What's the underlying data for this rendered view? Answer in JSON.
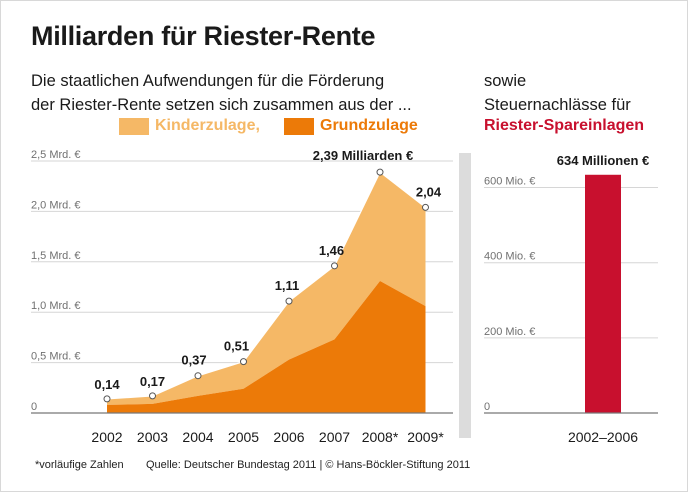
{
  "title": "Milliarden für Riester-Rente",
  "subtitle_left": [
    "Die staatlichen Aufwendungen für die Förderung",
    "der Riester-Rente setzen sich zusammen aus der ..."
  ],
  "subtitle_right": [
    "sowie",
    "Steuernachlässe für"
  ],
  "right_highlight": "Riester-Spareinlagen",
  "legend": {
    "kinderzulage": "Kinderzulage,",
    "grundzulage": "Grundzulage"
  },
  "colors": {
    "kinderzulage": "#f5b866",
    "grundzulage": "#ec7a08",
    "spareinlagen": "#c8102e",
    "grid": "#d6d6d6",
    "tick_label": "#707070"
  },
  "footnote": "*vorläufige Zahlen",
  "source": "Quelle: Deutscher Bundestag 2011 | © Hans-Böckler-Stiftung 2011",
  "chart_data": [
    {
      "type": "area",
      "categories": [
        "2002",
        "2003",
        "2004",
        "2005",
        "2006",
        "2007",
        "2008*",
        "2009*"
      ],
      "y_ticks": [
        "0",
        "0,5 Mrd. €",
        "1,0 Mrd. €",
        "1,5 Mrd. €",
        "2,0 Mrd. €",
        "2,5 Mrd. €"
      ],
      "ylim": [
        0,
        2.5
      ],
      "grid": true,
      "stacked": true,
      "series": [
        {
          "name": "Grundzulage",
          "values": [
            0.08,
            0.09,
            0.17,
            0.24,
            0.53,
            0.73,
            1.31,
            1.06
          ]
        },
        {
          "name": "Kinderzulage",
          "values": [
            0.06,
            0.08,
            0.2,
            0.27,
            0.58,
            0.73,
            1.08,
            0.98
          ]
        }
      ],
      "totals": [
        0.14,
        0.17,
        0.37,
        0.51,
        1.11,
        1.46,
        2.39,
        2.04
      ],
      "data_labels": [
        "0,14",
        "0,17",
        "0,37",
        "0,51",
        "1,11",
        "1,46",
        "2,39 Milliarden €",
        "2,04"
      ]
    },
    {
      "type": "bar",
      "categories": [
        "2002–2006"
      ],
      "y_ticks": [
        "0",
        "200 Mio. €",
        "400 Mio. €",
        "600 Mio. €"
      ],
      "ylim": [
        0,
        660
      ],
      "grid": true,
      "series": [
        {
          "name": "Riester-Spareinlagen",
          "values": [
            634
          ]
        }
      ],
      "data_labels": [
        "634 Millionen €"
      ]
    }
  ]
}
